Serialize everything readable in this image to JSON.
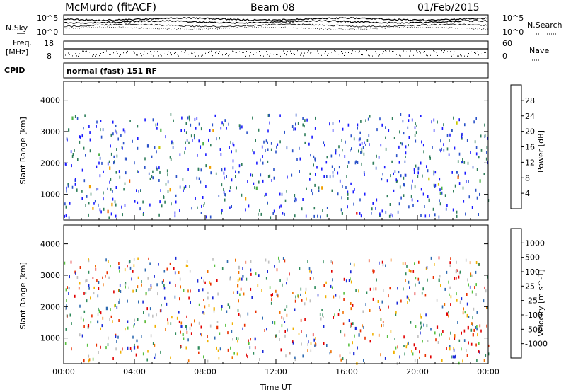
{
  "header": {
    "station": "McMurdo (fitACF)",
    "beam": "Beam 08",
    "date": "01/Feb/2015"
  },
  "top_panels": {
    "nsky_label": "N.Sky",
    "nsearch_label": "N.Search",
    "nsky_ticks": [
      "10^5",
      "10^0"
    ],
    "nsearch_ticks": [
      "10^5",
      "10^0"
    ],
    "freq_label": "Freq.",
    "freq_unit": "[MHz]",
    "freq_ticks": [
      "18",
      "8"
    ],
    "nave_label": "Nave",
    "nave_ticks": [
      "60",
      "0"
    ],
    "cpid_label": "CPID",
    "cpid_text": "normal (fast) 151 RF"
  },
  "chart_data": [
    {
      "type": "heatmap",
      "name": "power-panel",
      "ylabel": "Slant Range [km]",
      "xlabel": "",
      "xlim": [
        0,
        24
      ],
      "ylim": [
        180,
        4600
      ],
      "yticks": [
        1000,
        2000,
        3000,
        4000
      ],
      "colorbar": {
        "label": "Power [dB]",
        "ticks": [
          "4",
          "8",
          "12",
          "16",
          "20",
          "24",
          "28"
        ],
        "colors": [
          "#1a1aff",
          "#2a52c8",
          "#2e7d5a",
          "#4cb048",
          "#c8c800",
          "#f0a000",
          "#f06000",
          "#e00000"
        ]
      },
      "regions": [
        {
          "t": [
            0.0,
            0.6
          ],
          "r": [
            300,
            700
          ],
          "level": 0.85
        },
        {
          "t": [
            0.0,
            0.6
          ],
          "r": [
            700,
            3500
          ],
          "level": 0.35
        },
        {
          "t": [
            0.6,
            2.0
          ],
          "r": [
            300,
            700
          ],
          "level": 0.55
        },
        {
          "t": [
            0.6,
            2.3
          ],
          "r": [
            700,
            1600
          ],
          "level": 0.45
        },
        {
          "t": [
            1.2,
            2.3
          ],
          "r": [
            1700,
            2500
          ],
          "level": 0.3
        },
        {
          "t": [
            2.3,
            5.0
          ],
          "r": [
            500,
            1500
          ],
          "level": 0.8
        },
        {
          "t": [
            2.3,
            5.5
          ],
          "r": [
            1500,
            2700
          ],
          "level": 0.45
        },
        {
          "t": [
            3.0,
            6.5
          ],
          "r": [
            2700,
            3400
          ],
          "level": 0.55
        },
        {
          "t": [
            5.5,
            7.5
          ],
          "r": [
            700,
            1300
          ],
          "level": 0.55
        },
        {
          "t": [
            6.0,
            7.5
          ],
          "r": [
            2900,
            3300
          ],
          "level": 0.95
        },
        {
          "t": [
            7.5,
            10.5
          ],
          "r": [
            1800,
            2800
          ],
          "level": 0.55
        },
        {
          "t": [
            8.0,
            10.0
          ],
          "r": [
            2800,
            3400
          ],
          "level": 0.5
        },
        {
          "t": [
            9.0,
            11.0
          ],
          "r": [
            800,
            1700
          ],
          "level": 0.5
        },
        {
          "t": [
            10.0,
            12.0
          ],
          "r": [
            300,
            500
          ],
          "level": 0.3
        },
        {
          "t": [
            12.0,
            16.5
          ],
          "r": [
            250,
            600
          ],
          "level": 0.5
        },
        {
          "t": [
            14.5,
            16.5
          ],
          "r": [
            600,
            1500
          ],
          "level": 0.45
        },
        {
          "t": [
            16.5,
            18.5
          ],
          "r": [
            250,
            500
          ],
          "level": 0.9
        },
        {
          "t": [
            16.5,
            19.5
          ],
          "r": [
            700,
            1400
          ],
          "level": 0.4
        },
        {
          "t": [
            19.0,
            21.5
          ],
          "r": [
            600,
            1800
          ],
          "level": 0.45
        },
        {
          "t": [
            20.5,
            22.5
          ],
          "r": [
            1000,
            2600
          ],
          "level": 0.65
        },
        {
          "t": [
            21.0,
            23.5
          ],
          "r": [
            2800,
            3600
          ],
          "level": 0.4
        },
        {
          "t": [
            22.5,
            23.8
          ],
          "r": [
            300,
            1800
          ],
          "level": 0.35
        }
      ]
    },
    {
      "type": "heatmap",
      "name": "velocity-panel",
      "ylabel": "Slant Range [km]",
      "xlabel": "Time UT",
      "xlim": [
        0,
        24
      ],
      "ylim": [
        180,
        4600
      ],
      "yticks": [
        1000,
        2000,
        3000,
        4000
      ],
      "xticks": [
        "00:00",
        "04:00",
        "08:00",
        "12:00",
        "16:00",
        "20:00",
        "00:00"
      ],
      "colorbar": {
        "label": "Velocity [m s^-1]",
        "ticks": [
          "1000",
          "500",
          "100",
          "25",
          "-25",
          "-100",
          "-500",
          "-1000"
        ],
        "colors": [
          "#1a2ad8",
          "#2e6ab0",
          "#2e8a5a",
          "#58c040",
          "#c0c0c0",
          "#f0b000",
          "#f07000",
          "#e83000",
          "#e00000"
        ]
      },
      "regions": [
        {
          "t": [
            0.0,
            1.8
          ],
          "r": [
            300,
            900
          ],
          "level": 0.7
        },
        {
          "t": [
            0.6,
            1.6
          ],
          "r": [
            1200,
            2400
          ],
          "level": 0.75
        },
        {
          "t": [
            1.6,
            5.8
          ],
          "r": [
            600,
            2200
          ],
          "level": 0.2
        },
        {
          "t": [
            3.5,
            6.0
          ],
          "r": [
            2400,
            3300
          ],
          "level": 0.25
        },
        {
          "t": [
            6.0,
            8.5
          ],
          "r": [
            700,
            2000
          ],
          "level": 0.2
        },
        {
          "t": [
            6.5,
            8.0
          ],
          "r": [
            2800,
            3400
          ],
          "level": 0.25
        },
        {
          "t": [
            8.0,
            10.0
          ],
          "r": [
            1200,
            2800
          ],
          "level": 0.7
        },
        {
          "t": [
            9.0,
            11.5
          ],
          "r": [
            2400,
            3400
          ],
          "level": 0.3
        },
        {
          "t": [
            10.0,
            12.0
          ],
          "r": [
            900,
            1800
          ],
          "level": 0.2
        },
        {
          "t": [
            12.5,
            15.5
          ],
          "r": [
            300,
            800
          ],
          "level": 0.65
        },
        {
          "t": [
            15.5,
            18.5
          ],
          "r": [
            300,
            1400
          ],
          "level": 0.2
        },
        {
          "t": [
            18.5,
            20.0
          ],
          "r": [
            300,
            700
          ],
          "level": 0.7
        },
        {
          "t": [
            19.5,
            23.5
          ],
          "r": [
            600,
            2400
          ],
          "level": 0.72
        },
        {
          "t": [
            21.0,
            23.5
          ],
          "r": [
            2800,
            3500
          ],
          "level": 0.45
        },
        {
          "t": [
            0.0,
            24.0
          ],
          "r": [
            200,
            300
          ],
          "level": 0.45
        }
      ]
    }
  ]
}
